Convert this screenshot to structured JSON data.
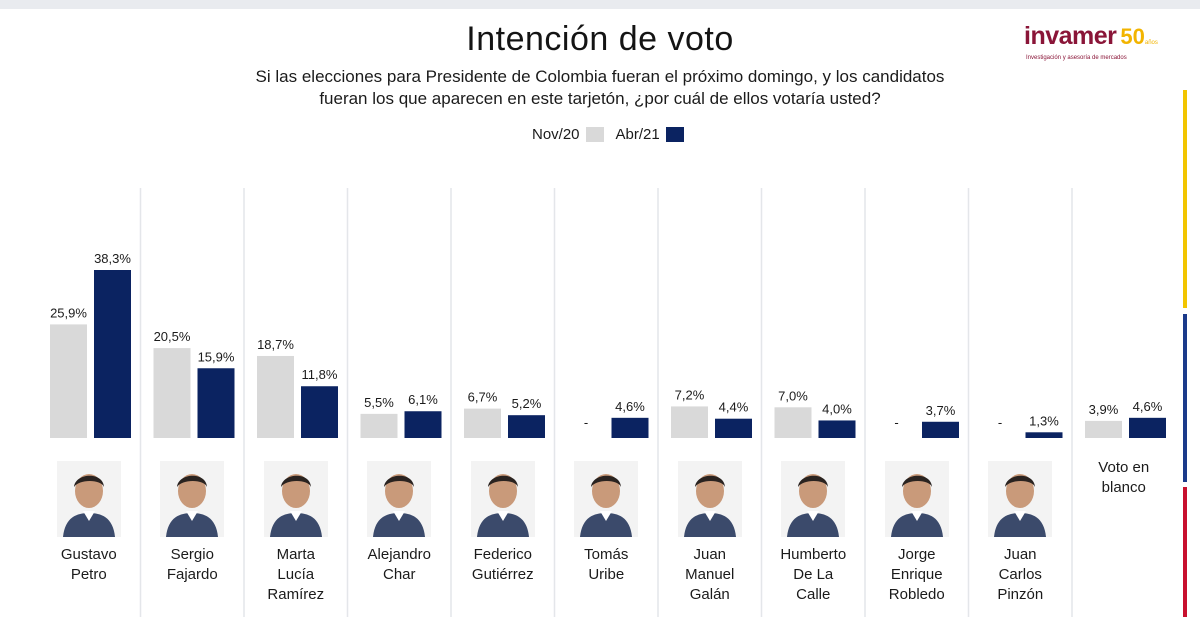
{
  "title": "Intención de voto",
  "subtitle_line1": "Si las elecciones para Presidente de Colombia fueran el próximo domingo, y los candidatos",
  "subtitle_line2": "fueran los que aparecen en este tarjetón, ¿por cuál de ellos votaría usted?",
  "logo": {
    "name": "invamer",
    "badge": "50",
    "badge_suffix": "años",
    "tagline": "Investigación y asesoría de mercados"
  },
  "colors": {
    "nov20": "#d9d9d9",
    "abr21": "#0b2361",
    "yellow": "#f2c500",
    "blue": "#1b3a8a",
    "red": "#c8102e",
    "divider": "#e4e6ea"
  },
  "chart_data": {
    "type": "bar",
    "title": "Intención de voto",
    "categories": [
      "Gustavo Petro",
      "Sergio Fajardo",
      "Marta Lucía Ramírez",
      "Alejandro Char",
      "Federico Gutiérrez",
      "Tomás Uribe",
      "Juan Manuel Galán",
      "Humberto De La Calle",
      "Jorge Enrique Robledo",
      "Juan Carlos Pinzón",
      "Voto en blanco"
    ],
    "name_lines": [
      [
        "Gustavo",
        "Petro"
      ],
      [
        "Sergio",
        "Fajardo"
      ],
      [
        "Marta",
        "Lucía",
        "Ramírez"
      ],
      [
        "Alejandro",
        "Char"
      ],
      [
        "Federico",
        "Gutiérrez"
      ],
      [
        "Tomás",
        "Uribe"
      ],
      [
        "Juan",
        "Manuel",
        "Galán"
      ],
      [
        "Humberto",
        "De La",
        "Calle"
      ],
      [
        "Jorge",
        "Enrique",
        "Robledo"
      ],
      [
        "Juan",
        "Carlos",
        "Pinzón"
      ],
      [
        "Voto en",
        "blanco"
      ]
    ],
    "series": [
      {
        "name": "Nov/20",
        "values": [
          25.9,
          20.5,
          18.7,
          5.5,
          6.7,
          null,
          7.2,
          7.0,
          null,
          null,
          3.9
        ],
        "labels": [
          "25,9%",
          "20,5%",
          "18,7%",
          "5,5%",
          "6,7%",
          "-",
          "7,2%",
          "7,0%",
          "-",
          "-",
          "3,9%"
        ]
      },
      {
        "name": "Abr/21",
        "values": [
          38.3,
          15.9,
          11.8,
          6.1,
          5.2,
          4.6,
          4.4,
          4.0,
          3.7,
          1.3,
          4.6
        ],
        "labels": [
          "38,3%",
          "15,9%",
          "11,8%",
          "6,1%",
          "5,2%",
          "4,6%",
          "4,4%",
          "4,0%",
          "3,7%",
          "1,3%",
          "4,6%"
        ]
      }
    ],
    "ylim": [
      0,
      40
    ],
    "grid": false,
    "legend_position": "top-center"
  }
}
